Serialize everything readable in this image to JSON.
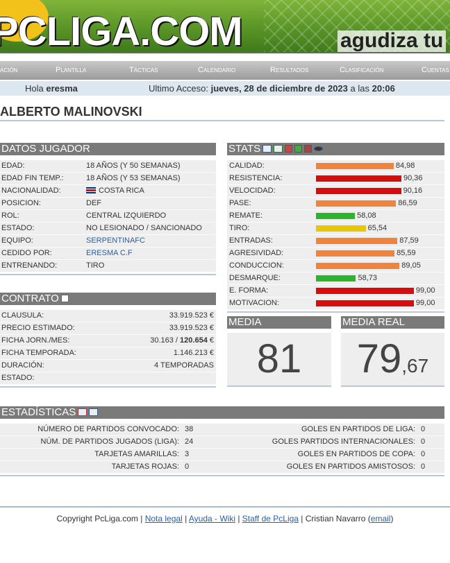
{
  "header": {
    "logo": "PCLIGA.COM",
    "slogan": "agudiza tu"
  },
  "nav": [
    "ación",
    "Plantilla",
    "Tácticas",
    "Calendario",
    "Resultados",
    "Clasificación",
    "Cuentas"
  ],
  "greeting": {
    "hello": "Hola",
    "user": "eresma",
    "access_label": "Ultimo Acceso:",
    "date": "jueves, 28 de diciembre de 2023",
    "at": "a las",
    "time": "20:06"
  },
  "player_name": "ALBERTO MALINOVSKI",
  "datos": {
    "title": "DATOS JUGADOR",
    "rows": [
      [
        "EDAD:",
        "18 AÑOS (Y 50 SEMANAS)"
      ],
      [
        "EDAD FIN TEMP.:",
        "18 AÑOS (Y 53 SEMANAS)"
      ],
      [
        "NACIONALIDAD:",
        "COSTA RICA"
      ],
      [
        "POSICION:",
        "DEF"
      ],
      [
        "ROL:",
        "CENTRAL IZQUIERDO"
      ],
      [
        "ESTADO:",
        "NO LESIONADO / SANCIONADO"
      ],
      [
        "EQUIPO:",
        "SERPENTINAFC"
      ],
      [
        "CEDIDO POR:",
        "ERESMA C.F"
      ],
      [
        "ENTRENANDO:",
        "TIRO"
      ]
    ]
  },
  "contrato": {
    "title": "CONTRATO",
    "rows": [
      {
        "label": "CLAUSULA:",
        "value": "33.919.523 €"
      },
      {
        "label": "PRECIO ESTIMADO:",
        "value": "33.919.523 €"
      },
      {
        "label": "FICHA JORN./MES:",
        "value": "30.163 /",
        "value_strong": "120.654",
        "suffix": "€"
      },
      {
        "label": "FICHA TEMPORADA:",
        "value": "1.146.213 €"
      },
      {
        "label": "DURACIÓN:",
        "value": "4 TEMPORADAS"
      },
      {
        "label": "ESTADO:"
      }
    ]
  },
  "stats": {
    "title": "STATS",
    "rows": [
      {
        "label": "CALIDAD:",
        "value": 84.98,
        "value_label": "84,98",
        "color": "#f0843c"
      },
      {
        "label": "RESISTENCIA:",
        "value": 90.36,
        "value_label": "90,36",
        "color": "#d70d0d"
      },
      {
        "label": "VELOCIDAD:",
        "value": 90.16,
        "value_label": "90,16",
        "color": "#d70d0d"
      },
      {
        "label": "PASE:",
        "value": 86.59,
        "value_label": "86,59",
        "color": "#f0843c"
      },
      {
        "label": "REMATE:",
        "value": 58.08,
        "value_label": "58,08",
        "color": "#2cb52c"
      },
      {
        "label": "TIRO:",
        "value": 65.54,
        "value_label": "65,54",
        "color": "#e6c70a"
      },
      {
        "label": "ENTRADAS:",
        "value": 87.59,
        "value_label": "87,59",
        "color": "#f0843c"
      },
      {
        "label": "AGRESIVIDAD:",
        "value": 85.59,
        "value_label": "85,59",
        "color": "#f0843c"
      },
      {
        "label": "CONDUCCION:",
        "value": 89.05,
        "value_label": "89,05",
        "color": "#f0843c"
      },
      {
        "label": "DESMARQUE:",
        "value": 58.73,
        "value_label": "58,73",
        "color": "#2cb52c"
      },
      {
        "label": "E. FORMA:",
        "value": 99.0,
        "value_label": "99,00",
        "color": "#d70d0d"
      },
      {
        "label": "MOTIVACION:",
        "value": 99.0,
        "value_label": "99,00",
        "color": "#d70d0d"
      }
    ]
  },
  "media": {
    "title": "MEDIA",
    "value": "81"
  },
  "media_real": {
    "title": "MEDIA REAL",
    "whole": "79",
    "decimal": ",67"
  },
  "estadisticas": {
    "title": "ESTADÍSTICAS",
    "left": [
      [
        "NÚMERO DE PARTIDOS CONVOCADO:",
        "38"
      ],
      [
        "NÚM. DE PARTIDOS JUGADOS (LIGA):",
        "24"
      ],
      [
        "TARJETAS AMARILLAS:",
        "3"
      ],
      [
        "TARJETAS ROJAS:",
        "0"
      ]
    ],
    "right": [
      [
        "GOLES EN PARTIDOS DE LIGA:",
        "0"
      ],
      [
        "GOLES PARTIDOS INTERNACIONALES:",
        "0"
      ],
      [
        "GOLES EN PARTIDOS DE COPA:",
        "0"
      ],
      [
        "GOLES EN PARTIDOS AMISTOSOS:",
        "0"
      ]
    ]
  },
  "footer": {
    "copyright": "Copyright PcLiga.com |",
    "legal": "Nota legal",
    "wiki": "Ayuda - Wiki",
    "staff": "Staff de PcLiga",
    "author": "Cristian Navarro (",
    "email": "email",
    "close": ")"
  }
}
